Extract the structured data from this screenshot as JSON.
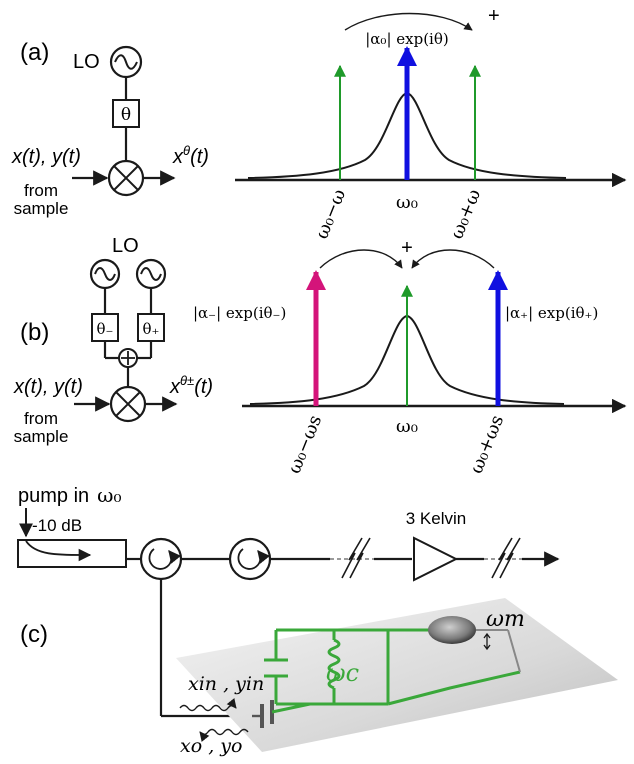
{
  "colors": {
    "green": "#1f9a2a",
    "blue": "#1010e0",
    "magenta": "#d4147a",
    "black": "#1a1a1a",
    "chip_green": "#3aa83a"
  },
  "panel_a": {
    "label": "(a)",
    "lo": "LO",
    "phase": "θ",
    "input": "x(t), y(t)",
    "output": "x",
    "output_sup": "θ",
    "output_tail": "(t)",
    "source_line1": "from",
    "source_line2": "sample",
    "plus": "+",
    "center_arrow_label": "|α₀| exp(iθ)",
    "ticks": [
      "ω₀−ω",
      "ω₀",
      "ω₀+ω"
    ]
  },
  "panel_b": {
    "label": "(b)",
    "lo": "LO",
    "phase_minus": "θ₋",
    "phase_plus": "θ₊",
    "input": "x(t), y(t)",
    "output": "x",
    "output_sup": "θ±",
    "output_tail": "(t)",
    "source_line1": "from",
    "source_line2": "sample",
    "plus": "+",
    "left_arrow_label": "|α₋| exp(iθ₋)",
    "right_arrow_label": "|α₊| exp(iθ₊)",
    "ticks": [
      "ω₀−ωs",
      "ω₀",
      "ω₀+ωs"
    ]
  },
  "panel_c": {
    "label": "(c)",
    "pump": "pump in",
    "pump_freq": "ω₀",
    "attenuation": "-10 dB",
    "temperature": "3 Kelvin",
    "cavity": "ωc",
    "mechanical": "ωm",
    "input_field": "xin , yin",
    "output_field": "xo , yo"
  }
}
